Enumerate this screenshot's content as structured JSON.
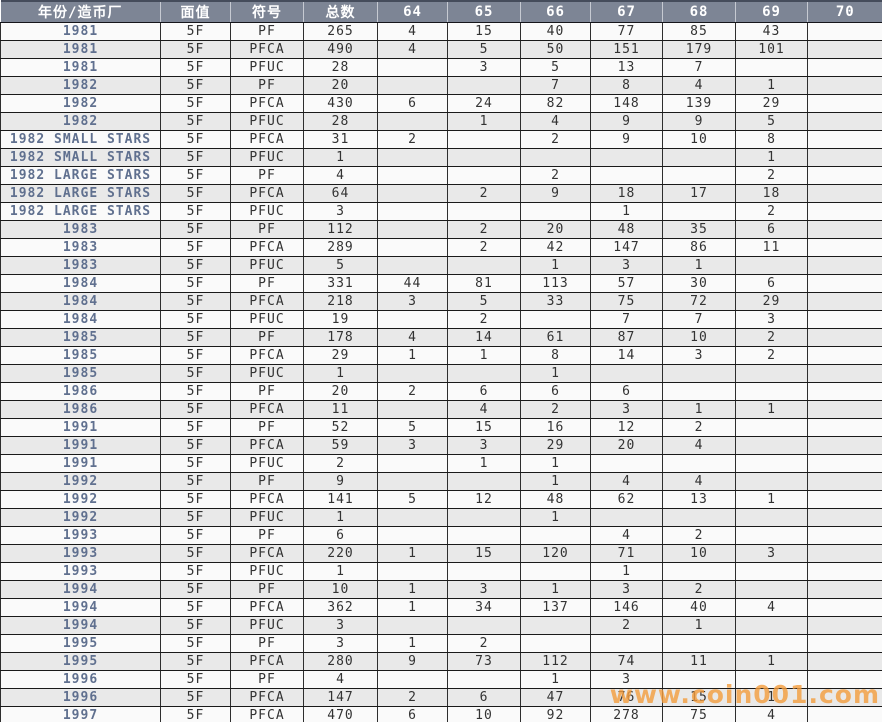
{
  "watermark": {
    "text": "www.coin001.com",
    "color": "#f49d3d"
  },
  "colors": {
    "header_bg": "#7d8595",
    "header_text": "#ffffff",
    "year_text": "#60708f",
    "row_even": "#e9e9e9",
    "row_odd": "#fafafa",
    "border": "#2e2e2e"
  },
  "table": {
    "columns": [
      "年份/造币厂",
      "面值",
      "符号",
      "总数",
      "64",
      "65",
      "66",
      "67",
      "68",
      "69",
      "70"
    ],
    "rows": [
      [
        "1981",
        "5F",
        "PF",
        "265",
        "4",
        "15",
        "40",
        "77",
        "85",
        "43",
        ""
      ],
      [
        "1981",
        "5F",
        "PFCA",
        "490",
        "4",
        "5",
        "50",
        "151",
        "179",
        "101",
        ""
      ],
      [
        "1981",
        "5F",
        "PFUC",
        "28",
        "",
        "3",
        "5",
        "13",
        "7",
        "",
        ""
      ],
      [
        "1982",
        "5F",
        "PF",
        "20",
        "",
        "",
        "7",
        "8",
        "4",
        "1",
        ""
      ],
      [
        "1982",
        "5F",
        "PFCA",
        "430",
        "6",
        "24",
        "82",
        "148",
        "139",
        "29",
        ""
      ],
      [
        "1982",
        "5F",
        "PFUC",
        "28",
        "",
        "1",
        "4",
        "9",
        "9",
        "5",
        ""
      ],
      [
        "1982 SMALL STARS",
        "5F",
        "PFCA",
        "31",
        "2",
        "",
        "2",
        "9",
        "10",
        "8",
        ""
      ],
      [
        "1982 SMALL STARS",
        "5F",
        "PFUC",
        "1",
        "",
        "",
        "",
        "",
        "",
        "1",
        ""
      ],
      [
        "1982 LARGE STARS",
        "5F",
        "PF",
        "4",
        "",
        "",
        "2",
        "",
        "",
        "2",
        ""
      ],
      [
        "1982 LARGE STARS",
        "5F",
        "PFCA",
        "64",
        "",
        "2",
        "9",
        "18",
        "17",
        "18",
        ""
      ],
      [
        "1982 LARGE STARS",
        "5F",
        "PFUC",
        "3",
        "",
        "",
        "",
        "1",
        "",
        "2",
        ""
      ],
      [
        "1983",
        "5F",
        "PF",
        "112",
        "",
        "2",
        "20",
        "48",
        "35",
        "6",
        ""
      ],
      [
        "1983",
        "5F",
        "PFCA",
        "289",
        "",
        "2",
        "42",
        "147",
        "86",
        "11",
        ""
      ],
      [
        "1983",
        "5F",
        "PFUC",
        "5",
        "",
        "",
        "1",
        "3",
        "1",
        "",
        ""
      ],
      [
        "1984",
        "5F",
        "PF",
        "331",
        "44",
        "81",
        "113",
        "57",
        "30",
        "6",
        ""
      ],
      [
        "1984",
        "5F",
        "PFCA",
        "218",
        "3",
        "5",
        "33",
        "75",
        "72",
        "29",
        ""
      ],
      [
        "1984",
        "5F",
        "PFUC",
        "19",
        "",
        "2",
        "",
        "7",
        "7",
        "3",
        ""
      ],
      [
        "1985",
        "5F",
        "PF",
        "178",
        "4",
        "14",
        "61",
        "87",
        "10",
        "2",
        ""
      ],
      [
        "1985",
        "5F",
        "PFCA",
        "29",
        "1",
        "1",
        "8",
        "14",
        "3",
        "2",
        ""
      ],
      [
        "1985",
        "5F",
        "PFUC",
        "1",
        "",
        "",
        "1",
        "",
        "",
        "",
        ""
      ],
      [
        "1986",
        "5F",
        "PF",
        "20",
        "2",
        "6",
        "6",
        "6",
        "",
        "",
        ""
      ],
      [
        "1986",
        "5F",
        "PFCA",
        "11",
        "",
        "4",
        "2",
        "3",
        "1",
        "1",
        ""
      ],
      [
        "1991",
        "5F",
        "PF",
        "52",
        "5",
        "15",
        "16",
        "12",
        "2",
        "",
        ""
      ],
      [
        "1991",
        "5F",
        "PFCA",
        "59",
        "3",
        "3",
        "29",
        "20",
        "4",
        "",
        ""
      ],
      [
        "1991",
        "5F",
        "PFUC",
        "2",
        "",
        "1",
        "1",
        "",
        "",
        "",
        ""
      ],
      [
        "1992",
        "5F",
        "PF",
        "9",
        "",
        "",
        "1",
        "4",
        "4",
        "",
        ""
      ],
      [
        "1992",
        "5F",
        "PFCA",
        "141",
        "5",
        "12",
        "48",
        "62",
        "13",
        "1",
        ""
      ],
      [
        "1992",
        "5F",
        "PFUC",
        "1",
        "",
        "",
        "1",
        "",
        "",
        "",
        ""
      ],
      [
        "1993",
        "5F",
        "PF",
        "6",
        "",
        "",
        "",
        "4",
        "2",
        "",
        ""
      ],
      [
        "1993",
        "5F",
        "PFCA",
        "220",
        "1",
        "15",
        "120",
        "71",
        "10",
        "3",
        ""
      ],
      [
        "1993",
        "5F",
        "PFUC",
        "1",
        "",
        "",
        "",
        "1",
        "",
        "",
        ""
      ],
      [
        "1994",
        "5F",
        "PF",
        "10",
        "1",
        "3",
        "1",
        "3",
        "2",
        "",
        ""
      ],
      [
        "1994",
        "5F",
        "PFCA",
        "362",
        "1",
        "34",
        "137",
        "146",
        "40",
        "4",
        ""
      ],
      [
        "1994",
        "5F",
        "PFUC",
        "3",
        "",
        "",
        "",
        "2",
        "1",
        "",
        ""
      ],
      [
        "1995",
        "5F",
        "PF",
        "3",
        "1",
        "2",
        "",
        "",
        "",
        "",
        ""
      ],
      [
        "1995",
        "5F",
        "PFCA",
        "280",
        "9",
        "73",
        "112",
        "74",
        "11",
        "1",
        ""
      ],
      [
        "1996",
        "5F",
        "PF",
        "4",
        "",
        "",
        "1",
        "3",
        "",
        "",
        ""
      ],
      [
        "1996",
        "5F",
        "PFCA",
        "147",
        "2",
        "6",
        "47",
        "76",
        "15",
        "1",
        ""
      ],
      [
        "1997",
        "5F",
        "PFCA",
        "470",
        "6",
        "10",
        "92",
        "278",
        "75",
        "4",
        ""
      ]
    ]
  }
}
